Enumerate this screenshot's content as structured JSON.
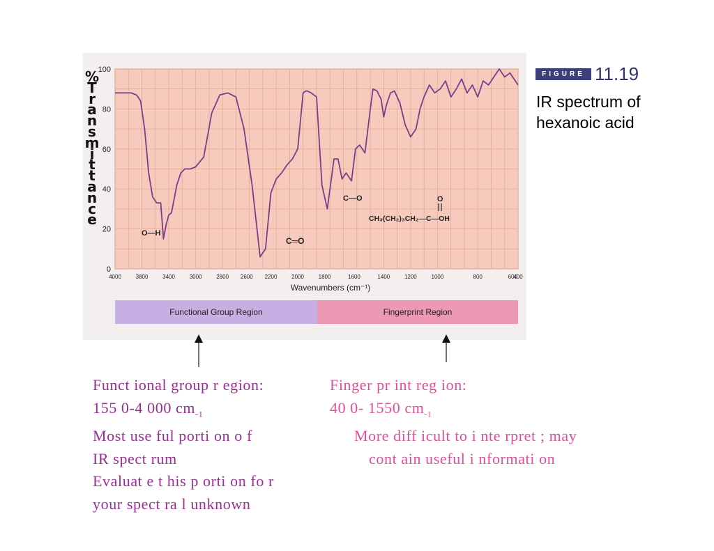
{
  "figure": {
    "badge": "FIGURE",
    "number": "11.19",
    "caption_line1": "IR spectrum of",
    "caption_line2": "hexanoic acid"
  },
  "colors": {
    "plot_background": "#f6cbbd",
    "grid": "#e8a896",
    "spectrum_line": "#7a3d8a",
    "functional_bar": "#c7aee3",
    "fingerprint_bar": "#ed98b5",
    "functional_text": "#9a2d96",
    "fingerprint_text": "#e04f98"
  },
  "chart_data": {
    "type": "line",
    "ylabel_chars": [
      "%",
      "T",
      "r",
      "a",
      "n",
      "s",
      "m",
      "i",
      "t",
      "t",
      "a",
      "n",
      "c",
      "e"
    ],
    "xlabel": "Wavenumbers (cm⁻¹)",
    "ylim": [
      0,
      100
    ],
    "y_ticks": [
      "0",
      "20",
      "40",
      "60",
      "80",
      "100"
    ],
    "x_ticks": [
      "4000",
      "3800",
      "3400",
      "3000",
      "2800",
      "2600",
      "2200",
      "2000",
      "1800",
      "1600",
      "1400",
      "1200",
      "1000",
      "800",
      "600",
      "400"
    ],
    "grid": true,
    "annotations": [
      "O—H",
      "C═O",
      "C—O",
      "O",
      "CH₃(CH₂)₃CH₂—C—OH"
    ],
    "series": [
      {
        "x": [
          0,
          0.2,
          0.6,
          0.8,
          0.95,
          1.1,
          1.25,
          1.4,
          1.55,
          1.7,
          1.8,
          1.9,
          2.0,
          2.1,
          2.2,
          2.3,
          2.45,
          2.6,
          2.8,
          3.0,
          3.3,
          3.6,
          3.9,
          4.2,
          4.5,
          4.8,
          5.1,
          5.4,
          5.6,
          5.8,
          6.0,
          6.2,
          6.4,
          6.6,
          6.8,
          7.0,
          7.1,
          7.15,
          7.3,
          7.5,
          7.7,
          7.9,
          8.05,
          8.15,
          8.3,
          8.45,
          8.6,
          8.8,
          8.95,
          9.1,
          9.3,
          9.5,
          9.6,
          9.75,
          9.9,
          10.0,
          10.1,
          10.25,
          10.4,
          10.6,
          10.8,
          11.0,
          11.2,
          11.35,
          11.5,
          11.7,
          11.9,
          12.1,
          12.3,
          12.5,
          12.7,
          12.9,
          13.1,
          13.3,
          13.5,
          13.7,
          13.9,
          14.1,
          14.3,
          14.5,
          14.7,
          14.85,
          15.0
        ],
        "y": [
          88,
          88,
          88,
          87,
          84,
          70,
          48,
          36,
          33,
          33,
          15,
          22,
          27,
          28,
          35,
          42,
          48,
          50,
          50,
          51,
          56,
          78,
          87,
          88,
          86,
          70,
          42,
          6,
          10,
          38,
          45,
          48,
          52,
          55,
          60,
          88,
          89,
          89,
          88,
          86,
          42,
          30,
          45,
          55,
          55,
          45,
          48,
          44,
          60,
          62,
          58,
          80,
          90,
          89,
          85,
          76,
          82,
          88,
          89,
          83,
          72,
          66,
          70,
          80,
          86,
          92,
          88,
          90,
          94,
          86,
          90,
          95,
          88,
          92,
          86,
          94,
          92,
          96,
          100,
          96,
          98,
          95,
          92
        ]
      }
    ]
  },
  "region_bars": {
    "functional": "Functional Group Region",
    "fingerprint": "Fingerprint Region"
  },
  "notes": {
    "functional": {
      "title": "Funct ional  group  r egion:",
      "range": "155 0-4 000  cm",
      "range_sup": "-1",
      "line3": "Most use  ful  porti on o f",
      "line4": "IR  spect rum",
      "line5": "Evaluat e t his p orti on fo r",
      "line6": "your  spect ra l  unknown"
    },
    "fingerprint": {
      "title": "Finger pr int   reg ion:",
      "range": "40 0- 1550  cm",
      "range_sup": "-1",
      "line3": "More  diff icult to i   nte rpret ;  may",
      "line4": "cont ain  useful i  nformati on"
    }
  }
}
